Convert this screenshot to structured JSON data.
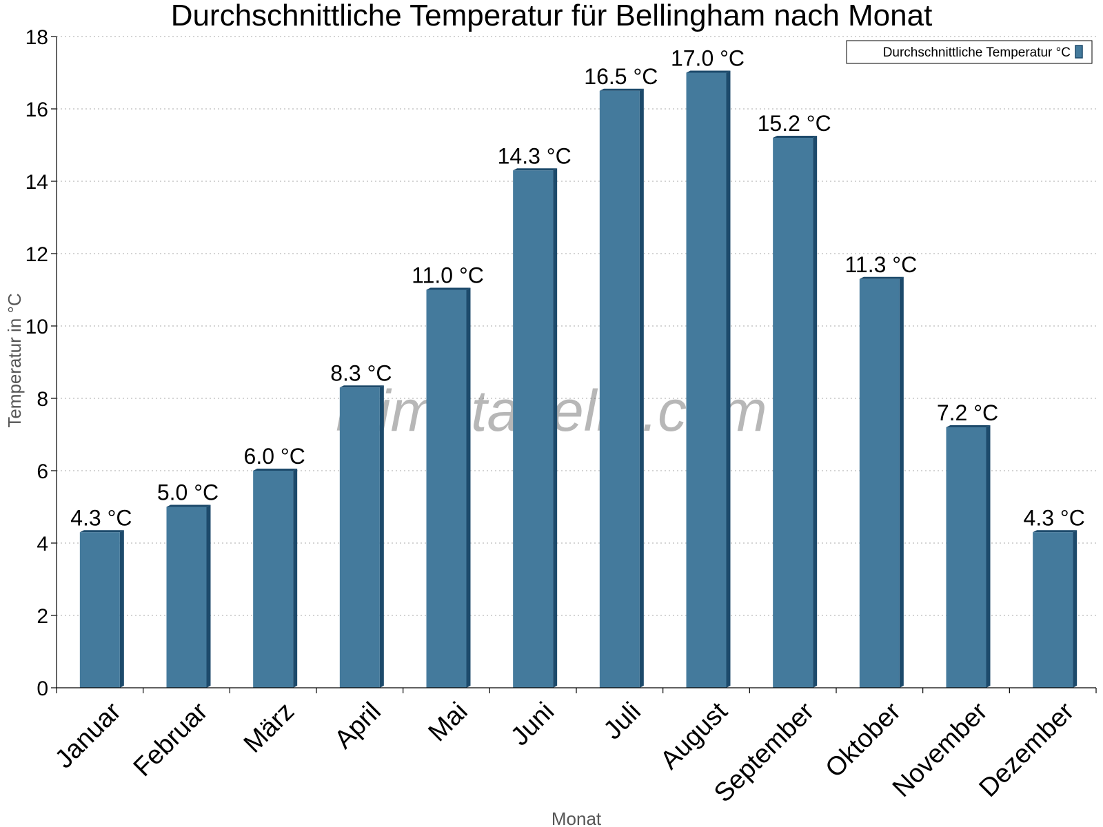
{
  "chart_data": {
    "type": "bar",
    "title": "Durchschnittliche Temperatur für Bellingham nach Monat",
    "xlabel": "Monat",
    "ylabel": "Temperatur in °C",
    "categories": [
      "Januar",
      "Februar",
      "März",
      "April",
      "Mai",
      "Juni",
      "Juli",
      "August",
      "September",
      "Oktober",
      "November",
      "Dezember"
    ],
    "series": [
      {
        "name": "Durchschnittliche Temperatur °C",
        "values": [
          4.3,
          5.0,
          6.0,
          8.3,
          11.0,
          14.3,
          16.5,
          17.0,
          15.2,
          11.3,
          7.2,
          4.3
        ],
        "labels": [
          "4.3 °C",
          "5.0 °C",
          "6.0 °C",
          "8.3 °C",
          "11.0 °C",
          "14.3 °C",
          "16.5 °C",
          "17.0 °C",
          "15.2 °C",
          "11.3 °C",
          "7.2 °C",
          "4.3 °C"
        ],
        "color": "#447a9c",
        "shade_color": "#1d4a6b"
      }
    ],
    "ylim": [
      0,
      18
    ],
    "yticks": [
      0,
      2,
      4,
      6,
      8,
      10,
      12,
      14,
      16,
      18
    ],
    "grid": true,
    "legend_position": "top-right",
    "watermark": "klimatabelle.com"
  }
}
